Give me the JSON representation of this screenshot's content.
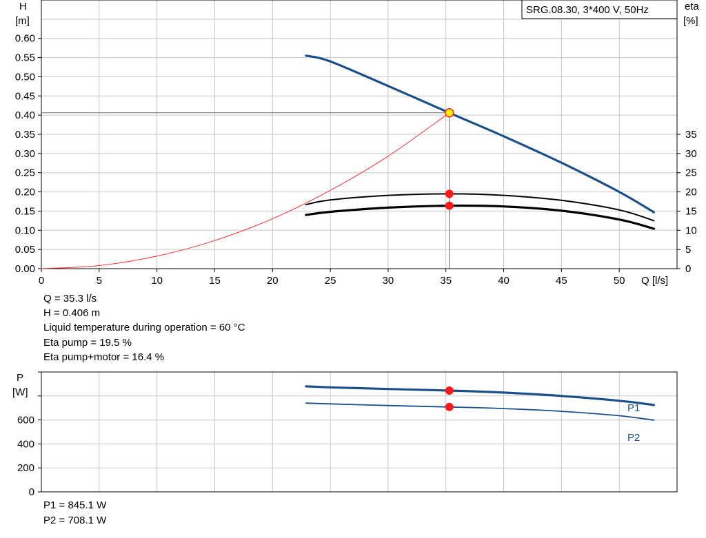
{
  "chart_data": [
    {
      "type": "line",
      "title": "SRG.08.30, 3*400 V, 50Hz",
      "xlabel": "Q [l/s]",
      "ylabel_name": "H",
      "ylabel_unit": "[m]",
      "y2label_name": "eta",
      "y2label_unit": "[%]",
      "xlim": [
        0,
        55
      ],
      "ylim": [
        0,
        0.7
      ],
      "y2lim": [
        0,
        35
      ],
      "grid": true,
      "x_ticks": [
        0,
        5,
        10,
        15,
        20,
        25,
        30,
        35,
        40,
        45,
        50
      ],
      "y_ticks": [
        "0.00",
        "0.05",
        "0.10",
        "0.15",
        "0.20",
        "0.25",
        "0.30",
        "0.35",
        "0.40",
        "0.45",
        "0.50",
        "0.55",
        "0.60"
      ],
      "y2_ticks": [
        "0",
        "5",
        "10",
        "15",
        "20",
        "25",
        "30",
        "35"
      ],
      "series": [
        {
          "axis": "left",
          "color": "#1a4f8a",
          "x": [
            22.9,
            25,
            30,
            35.3,
            40,
            45,
            50,
            53
          ],
          "y": [
            0.555,
            0.54,
            0.476,
            0.406,
            0.345,
            0.276,
            0.2,
            0.147
          ]
        },
        {
          "axis": "left",
          "color": "#ff3030",
          "x": [
            0,
            5,
            10,
            15,
            20,
            25,
            30,
            35.3
          ],
          "y": [
            0,
            0.0081,
            0.0326,
            0.0733,
            0.13,
            0.204,
            0.293,
            0.406
          ]
        },
        {
          "axis": "right",
          "color": "#000000",
          "x": [
            22.9,
            25,
            30,
            35.3,
            40,
            45,
            50,
            53
          ],
          "y": [
            16.7,
            17.9,
            19.1,
            19.5,
            19.1,
            17.8,
            15.3,
            12.5
          ]
        },
        {
          "axis": "right",
          "color": "#000000",
          "x": [
            22.9,
            25,
            30,
            35.3,
            40,
            45,
            50,
            53
          ],
          "y": [
            14.0,
            14.8,
            15.9,
            16.4,
            16.2,
            15.1,
            12.8,
            10.4
          ]
        }
      ],
      "operating_point": {
        "x": 35.3,
        "y": 0.406
      },
      "markers": [
        {
          "axis": "right",
          "x": 35.3,
          "y": 19.5
        },
        {
          "axis": "right",
          "x": 35.3,
          "y": 16.4
        }
      ]
    },
    {
      "type": "line",
      "xlabel": "",
      "ylabel_name": "P",
      "ylabel_unit": "[W]",
      "xlim": [
        0,
        58
      ],
      "ylim": [
        0,
        1000
      ],
      "grid": true,
      "y_ticks": [
        "0",
        "200",
        "400",
        "600"
      ],
      "series": [
        {
          "name": "P1",
          "color": "#1a4f8a",
          "x": [
            22.9,
            25,
            30,
            35.3,
            40,
            45,
            50,
            53
          ],
          "y": [
            880,
            872,
            858,
            845.1,
            828,
            800,
            760,
            725
          ]
        },
        {
          "name": "P2",
          "color": "#1a4f8a",
          "x": [
            22.9,
            25,
            30,
            35.3,
            40,
            45,
            50,
            53
          ],
          "y": [
            740,
            734,
            720,
            708.1,
            695,
            672,
            635,
            598
          ]
        }
      ],
      "markers": [
        {
          "x": 35.3,
          "y": 845.1
        },
        {
          "x": 35.3,
          "y": 708.1
        }
      ]
    }
  ],
  "info": {
    "q": "Q = 35.3 l/s",
    "h": "H = 0.406 m",
    "temp": "Liquid temperature during operation = 60 °C",
    "eta_pump": "Eta pump = 19.5 %",
    "eta_pump_motor": "Eta pump+motor = 16.4 %"
  },
  "power_info": {
    "p1": "P1 = 845.1 W",
    "p2": "P2 = 708.1 W"
  }
}
